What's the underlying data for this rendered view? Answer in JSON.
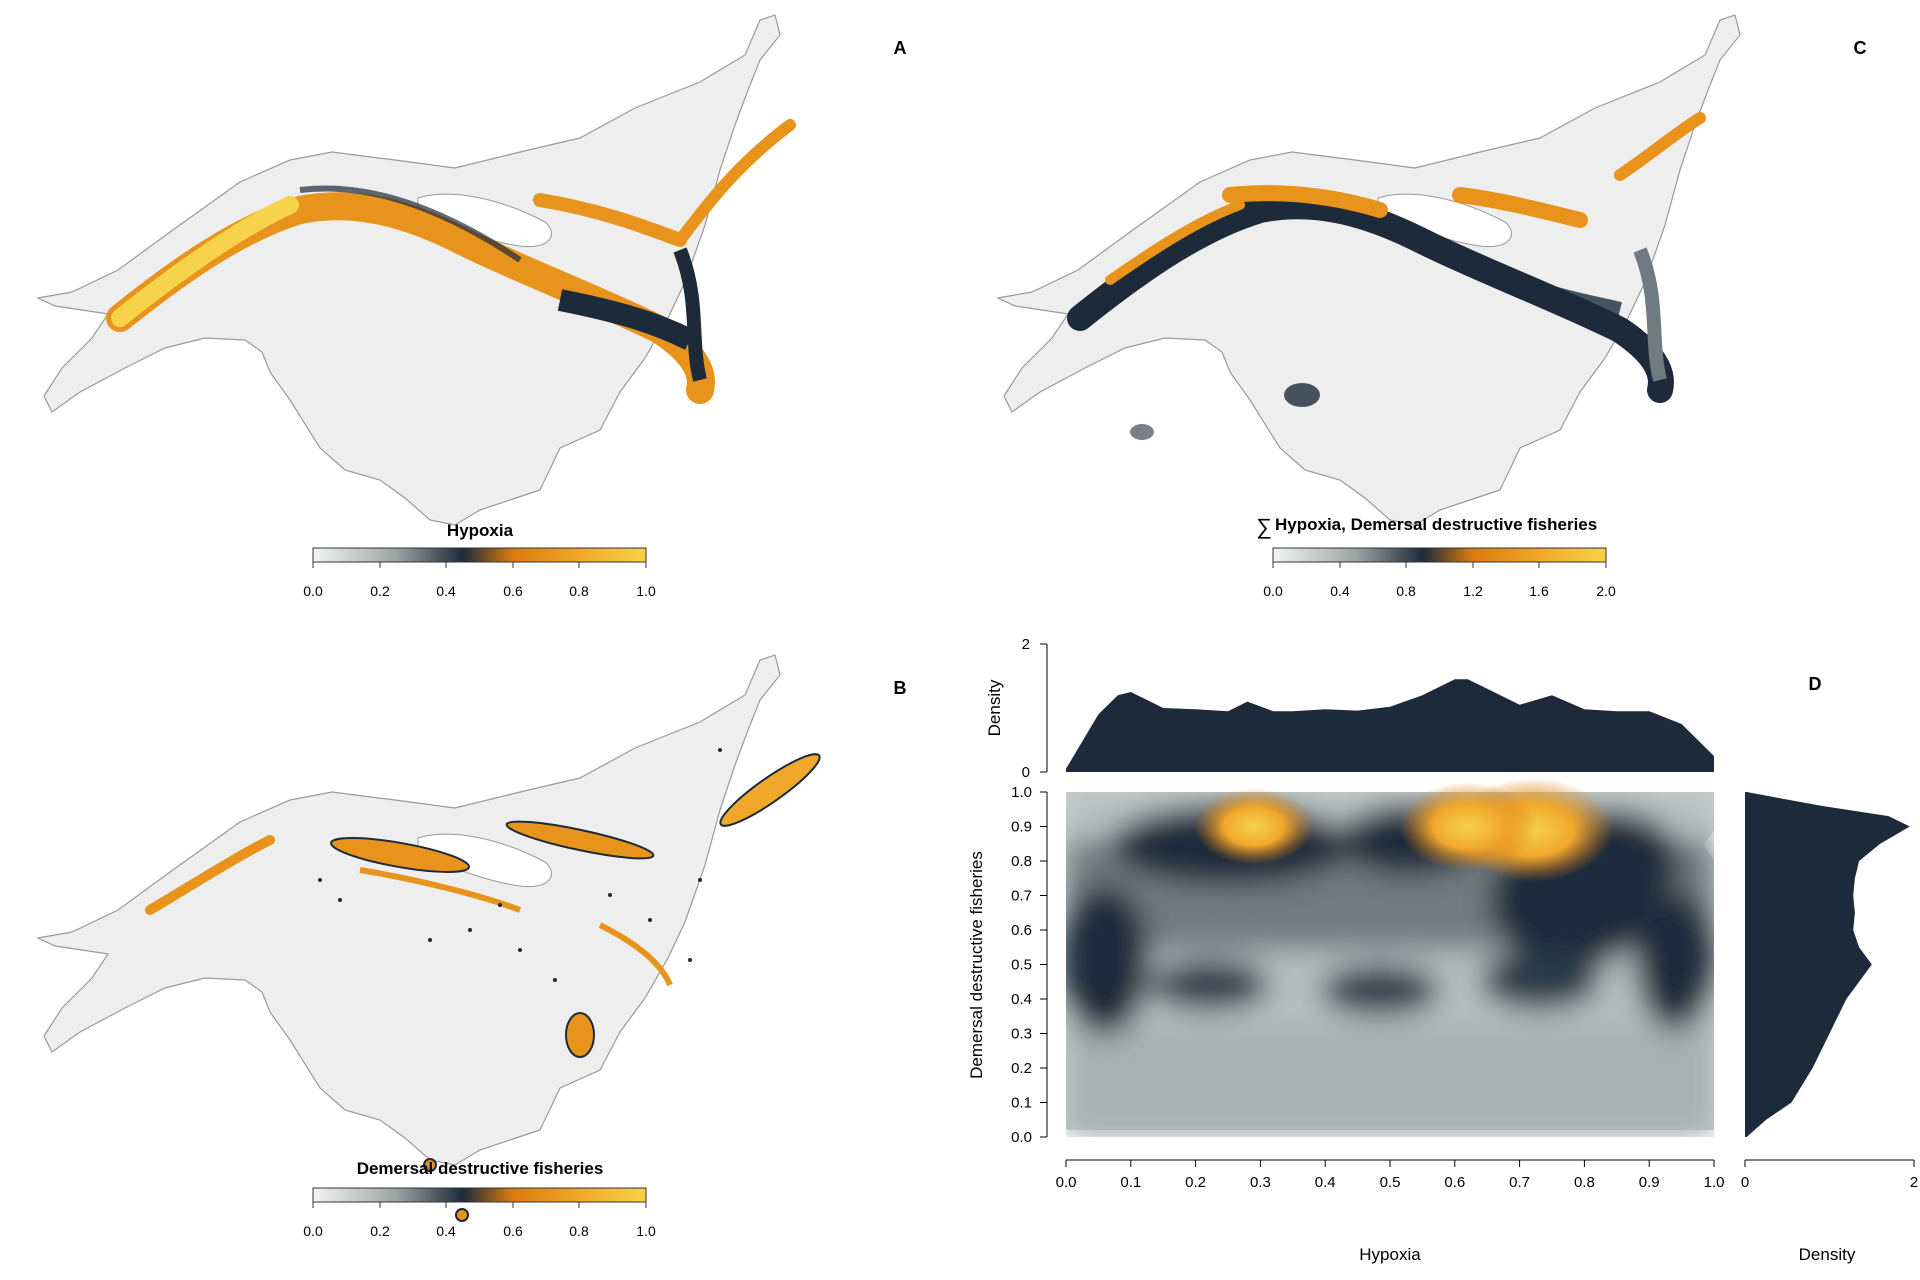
{
  "panels": {
    "A": {
      "letter": "A",
      "title": "Hypoxia",
      "ticks": [
        "0.0",
        "0.2",
        "0.4",
        "0.6",
        "0.8",
        "1.0"
      ]
    },
    "B": {
      "letter": "B",
      "title": "Demersal destructive fisheries",
      "ticks": [
        "0.0",
        "0.2",
        "0.4",
        "0.6",
        "0.8",
        "1.0"
      ]
    },
    "C": {
      "letter": "C",
      "sum_symbol": "∑",
      "title": "Hypoxia, Demersal destructive fisheries",
      "ticks": [
        "0.0",
        "0.4",
        "0.8",
        "1.2",
        "1.6",
        "2.0"
      ]
    },
    "D": {
      "letter": "D"
    }
  },
  "colors": {
    "land": "#eeeeee",
    "outline": "#9a9a9a",
    "navy": "#1c2a3a",
    "orange": "#e8941c",
    "gold": "#f6d34a",
    "gray_low": "#9aa5a3"
  },
  "chart_data": {
    "type": "heatmap",
    "xlabel": "Hypoxia",
    "ylabel": "Demersal destructive fisheries",
    "xlim": [
      0,
      1
    ],
    "ylim": [
      0,
      1
    ],
    "x_ticks": [
      "0.0",
      "0.1",
      "0.2",
      "0.3",
      "0.4",
      "0.5",
      "0.6",
      "0.7",
      "0.8",
      "0.9",
      "1.0"
    ],
    "y_ticks": [
      "0.0",
      "0.1",
      "0.2",
      "0.3",
      "0.4",
      "0.5",
      "0.6",
      "0.7",
      "0.8",
      "0.9",
      "1.0"
    ],
    "top_marginal": {
      "ylabel": "Density",
      "ylim": [
        0,
        2
      ],
      "ticks": [
        "0",
        "2"
      ],
      "x": [
        0.0,
        0.05,
        0.08,
        0.1,
        0.15,
        0.2,
        0.25,
        0.28,
        0.32,
        0.35,
        0.4,
        0.45,
        0.5,
        0.55,
        0.6,
        0.62,
        0.65,
        0.7,
        0.75,
        0.8,
        0.85,
        0.9,
        0.95,
        1.0
      ],
      "y": [
        0.05,
        0.9,
        1.2,
        1.25,
        1.0,
        0.98,
        0.95,
        1.1,
        0.95,
        0.95,
        0.98,
        0.96,
        1.02,
        1.2,
        1.45,
        1.45,
        1.3,
        1.05,
        1.2,
        0.98,
        0.95,
        0.95,
        0.75,
        0.25
      ]
    },
    "right_marginal": {
      "xlabel": "Density",
      "xlim": [
        0,
        2
      ],
      "ticks": [
        "0",
        "2"
      ],
      "y": [
        0.0,
        0.05,
        0.1,
        0.2,
        0.3,
        0.4,
        0.5,
        0.55,
        0.6,
        0.65,
        0.7,
        0.75,
        0.8,
        0.85,
        0.9,
        0.93,
        0.96,
        1.0
      ],
      "x": [
        0.02,
        0.25,
        0.55,
        0.8,
        1.0,
        1.2,
        1.5,
        1.35,
        1.28,
        1.3,
        1.28,
        1.3,
        1.35,
        1.6,
        1.95,
        1.7,
        0.9,
        0.02
      ]
    },
    "density_hotspots": [
      {
        "x": 0.72,
        "y": 0.89,
        "level": 2.0
      },
      {
        "x": 0.62,
        "y": 0.9,
        "level": 1.6
      },
      {
        "x": 0.29,
        "y": 0.9,
        "level": 1.3
      }
    ]
  }
}
